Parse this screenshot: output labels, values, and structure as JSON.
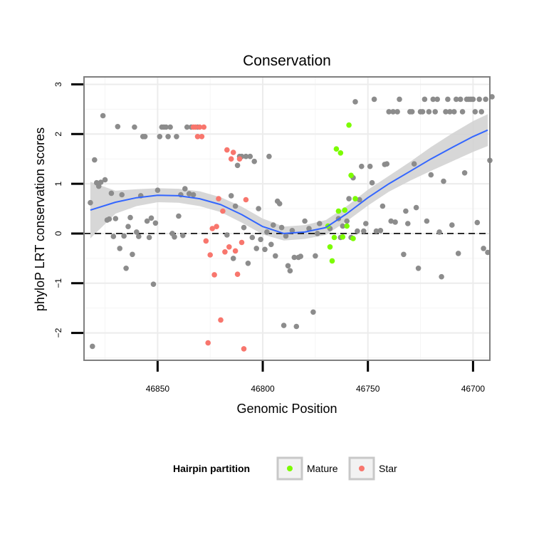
{
  "chart_data": {
    "type": "scatter",
    "title": "Conservation",
    "xlabel": "Genomic Position",
    "ylabel": "phyloP LRT conservation scores",
    "x_reversed": true,
    "xlim": [
      46885,
      46692
    ],
    "ylim": [
      -2.55,
      3.15
    ],
    "x_ticks": [
      46850,
      46800,
      46750,
      46700
    ],
    "y_ticks": [
      -2,
      -1,
      0,
      1,
      2,
      3
    ],
    "reference_line": {
      "y": 0,
      "style": "dashed"
    },
    "grid": true,
    "legend": {
      "title": "Hairpin partition",
      "position": "bottom",
      "entries": [
        {
          "label": "Mature",
          "color": "#7CFC00"
        },
        {
          "label": "Star",
          "color": "#F8766D"
        }
      ]
    },
    "colors": {
      "other": "#8C8C8C",
      "Mature": "#7CFC00",
      "Star": "#F8766D",
      "smooth": "#3366FF",
      "ribbon": "#D3D3D3"
    },
    "series": [
      {
        "name": "Other",
        "points": [
          [
            46882,
            0.62
          ],
          [
            46881,
            -2.27
          ],
          [
            46880,
            1.48
          ],
          [
            46879,
            1.02
          ],
          [
            46878,
            0.95
          ],
          [
            46877,
            1.03
          ],
          [
            46876,
            2.37
          ],
          [
            46875,
            1.08
          ],
          [
            46874,
            0.27
          ],
          [
            46873,
            0.29
          ],
          [
            46872,
            0.81
          ],
          [
            46871,
            -0.06
          ],
          [
            46870,
            0.3
          ],
          [
            46869,
            2.15
          ],
          [
            46868,
            -0.3
          ],
          [
            46867,
            0.78
          ],
          [
            46866,
            -0.05
          ],
          [
            46865,
            -0.7
          ],
          [
            46864,
            0.14
          ],
          [
            46863,
            0.32
          ],
          [
            46862,
            -0.42
          ],
          [
            46861,
            2.14
          ],
          [
            46860,
            0.03
          ],
          [
            46859,
            -0.06
          ],
          [
            46858,
            0.76
          ],
          [
            46857,
            1.95
          ],
          [
            46856,
            1.95
          ],
          [
            46855,
            0.25
          ],
          [
            46854,
            -0.08
          ],
          [
            46853,
            0.31
          ],
          [
            46852,
            -1.02
          ],
          [
            46851,
            0.21
          ],
          [
            46850,
            0.87
          ],
          [
            46849,
            1.95
          ],
          [
            46848,
            2.14
          ],
          [
            46847,
            2.14
          ],
          [
            46846,
            2.14
          ],
          [
            46845,
            1.95
          ],
          [
            46844,
            2.14
          ],
          [
            46843,
            0.0
          ],
          [
            46842,
            -0.07
          ],
          [
            46841,
            1.95
          ],
          [
            46840,
            0.35
          ],
          [
            46839,
            0.78
          ],
          [
            46838,
            -0.04
          ],
          [
            46837,
            0.9
          ],
          [
            46836,
            2.14
          ],
          [
            46835,
            0.8
          ],
          [
            46834,
            2.14
          ],
          [
            46833,
            0.78
          ],
          [
            46831,
            2.14
          ],
          [
            46817,
            -0.03
          ],
          [
            46815,
            0.76
          ],
          [
            46814,
            -0.5
          ],
          [
            46813,
            0.55
          ],
          [
            46812,
            1.37
          ],
          [
            46811,
            1.55
          ],
          [
            46810,
            1.55
          ],
          [
            46809,
            0.12
          ],
          [
            46808,
            1.55
          ],
          [
            46807,
            -0.6
          ],
          [
            46806,
            1.55
          ],
          [
            46805,
            -0.08
          ],
          [
            46804,
            1.45
          ],
          [
            46803,
            -0.3
          ],
          [
            46802,
            0.5
          ],
          [
            46801,
            -0.12
          ],
          [
            46799,
            -0.32
          ],
          [
            46798,
            0.03
          ],
          [
            46797,
            1.55
          ],
          [
            46796,
            -0.22
          ],
          [
            46795,
            0.17
          ],
          [
            46794,
            -0.45
          ],
          [
            46793,
            0.65
          ],
          [
            46792,
            0.6
          ],
          [
            46791,
            0.12
          ],
          [
            46790,
            -1.85
          ],
          [
            46789,
            -0.05
          ],
          [
            46788,
            -0.65
          ],
          [
            46787,
            -0.75
          ],
          [
            46786,
            0.06
          ],
          [
            46785,
            -0.48
          ],
          [
            46784,
            -1.87
          ],
          [
            46783,
            -0.48
          ],
          [
            46782,
            -0.46
          ],
          [
            46780,
            0.25
          ],
          [
            46778,
            0.1
          ],
          [
            46776,
            -1.58
          ],
          [
            46775,
            -0.45
          ],
          [
            46774,
            0.0
          ],
          [
            46773,
            0.2
          ],
          [
            46768,
            0.1
          ],
          [
            46764,
            0.3
          ],
          [
            46763,
            -0.08
          ],
          [
            46762,
            0.15
          ],
          [
            46760,
            0.25
          ],
          [
            46759,
            0.7
          ],
          [
            46758,
            -0.08
          ],
          [
            46757,
            1.12
          ],
          [
            46756,
            2.65
          ],
          [
            46755,
            0.05
          ],
          [
            46754,
            0.68
          ],
          [
            46753,
            1.35
          ],
          [
            46752,
            0.05
          ],
          [
            46751,
            0.2
          ],
          [
            46749,
            1.35
          ],
          [
            46748,
            1.02
          ],
          [
            46747,
            2.7
          ],
          [
            46746,
            0.05
          ],
          [
            46744,
            0.06
          ],
          [
            46743,
            0.55
          ],
          [
            46742,
            1.39
          ],
          [
            46741,
            1.4
          ],
          [
            46740,
            2.45
          ],
          [
            46739,
            0.25
          ],
          [
            46738,
            2.45
          ],
          [
            46737,
            0.23
          ],
          [
            46736,
            2.45
          ],
          [
            46735,
            2.7
          ],
          [
            46733,
            -0.42
          ],
          [
            46732,
            0.45
          ],
          [
            46731,
            0.2
          ],
          [
            46730,
            2.45
          ],
          [
            46729,
            2.45
          ],
          [
            46728,
            1.4
          ],
          [
            46727,
            0.52
          ],
          [
            46726,
            -0.7
          ],
          [
            46725,
            2.45
          ],
          [
            46724,
            2.45
          ],
          [
            46723,
            2.7
          ],
          [
            46722,
            0.25
          ],
          [
            46721,
            2.45
          ],
          [
            46720,
            1.18
          ],
          [
            46719,
            2.7
          ],
          [
            46718,
            2.45
          ],
          [
            46717,
            2.7
          ],
          [
            46716,
            0.03
          ],
          [
            46715,
            -0.87
          ],
          [
            46714,
            1.05
          ],
          [
            46713,
            2.45
          ],
          [
            46712,
            2.7
          ],
          [
            46711,
            2.45
          ],
          [
            46710,
            0.17
          ],
          [
            46709,
            2.45
          ],
          [
            46708,
            2.7
          ],
          [
            46707,
            -0.4
          ],
          [
            46706,
            2.7
          ],
          [
            46705,
            2.45
          ],
          [
            46704,
            1.22
          ],
          [
            46703,
            2.7
          ],
          [
            46702,
            2.7
          ],
          [
            46701,
            2.7
          ],
          [
            46700,
            2.7
          ],
          [
            46699,
            2.45
          ],
          [
            46698,
            0.22
          ],
          [
            46697,
            2.7
          ],
          [
            46696,
            2.45
          ],
          [
            46695,
            -0.3
          ],
          [
            46694,
            2.7
          ],
          [
            46693,
            -0.38
          ],
          [
            46692,
            1.47
          ],
          [
            46691,
            2.75
          ]
        ]
      },
      {
        "name": "Mature",
        "points": [
          [
            46769,
            0.15
          ],
          [
            46768,
            -0.27
          ],
          [
            46767,
            -0.55
          ],
          [
            46766,
            -0.08
          ],
          [
            46765,
            1.7
          ],
          [
            46764,
            0.45
          ],
          [
            46763,
            1.62
          ],
          [
            46762,
            -0.07
          ],
          [
            46761,
            0.47
          ],
          [
            46760,
            0.15
          ],
          [
            46759,
            2.18
          ],
          [
            46758,
            1.17
          ],
          [
            46757,
            -0.1
          ],
          [
            46756,
            0.7
          ]
        ]
      },
      {
        "name": "Star",
        "points": [
          [
            46833,
            2.14
          ],
          [
            46832,
            2.14
          ],
          [
            46831,
            1.95
          ],
          [
            46830,
            2.14
          ],
          [
            46829,
            1.95
          ],
          [
            46828,
            2.14
          ],
          [
            46827,
            -0.15
          ],
          [
            46826,
            -2.2
          ],
          [
            46825,
            -0.43
          ],
          [
            46824,
            0.1
          ],
          [
            46823,
            -0.83
          ],
          [
            46822,
            0.14
          ],
          [
            46821,
            0.7
          ],
          [
            46820,
            -1.74
          ],
          [
            46819,
            0.45
          ],
          [
            46818,
            -0.37
          ],
          [
            46817,
            1.68
          ],
          [
            46816,
            -0.27
          ],
          [
            46815,
            1.5
          ],
          [
            46814,
            1.63
          ],
          [
            46813,
            -0.35
          ],
          [
            46812,
            -0.82
          ],
          [
            46811,
            1.5
          ],
          [
            46810,
            -0.18
          ],
          [
            46809,
            -2.32
          ],
          [
            46808,
            0.68
          ]
        ]
      }
    ],
    "smooth": {
      "method": "loess",
      "x": [
        46882,
        46870,
        46860,
        46850,
        46840,
        46830,
        46820,
        46810,
        46800,
        46790,
        46780,
        46770,
        46760,
        46750,
        46740,
        46730,
        46720,
        46710,
        46700,
        46693
      ],
      "y": [
        0.47,
        0.63,
        0.72,
        0.77,
        0.76,
        0.7,
        0.58,
        0.38,
        0.14,
        0.0,
        0.03,
        0.12,
        0.4,
        0.72,
        1.0,
        1.25,
        1.5,
        1.73,
        1.95,
        2.08
      ],
      "lower": [
        -0.1,
        0.4,
        0.55,
        0.63,
        0.62,
        0.55,
        0.43,
        0.22,
        -0.02,
        -0.14,
        -0.11,
        -0.03,
        0.25,
        0.56,
        0.84,
        1.06,
        1.26,
        1.45,
        1.64,
        1.76
      ],
      "upper": [
        1.04,
        0.86,
        0.89,
        0.91,
        0.9,
        0.85,
        0.73,
        0.54,
        0.3,
        0.14,
        0.17,
        0.27,
        0.55,
        0.88,
        1.16,
        1.44,
        1.74,
        2.01,
        2.26,
        2.4
      ]
    }
  }
}
